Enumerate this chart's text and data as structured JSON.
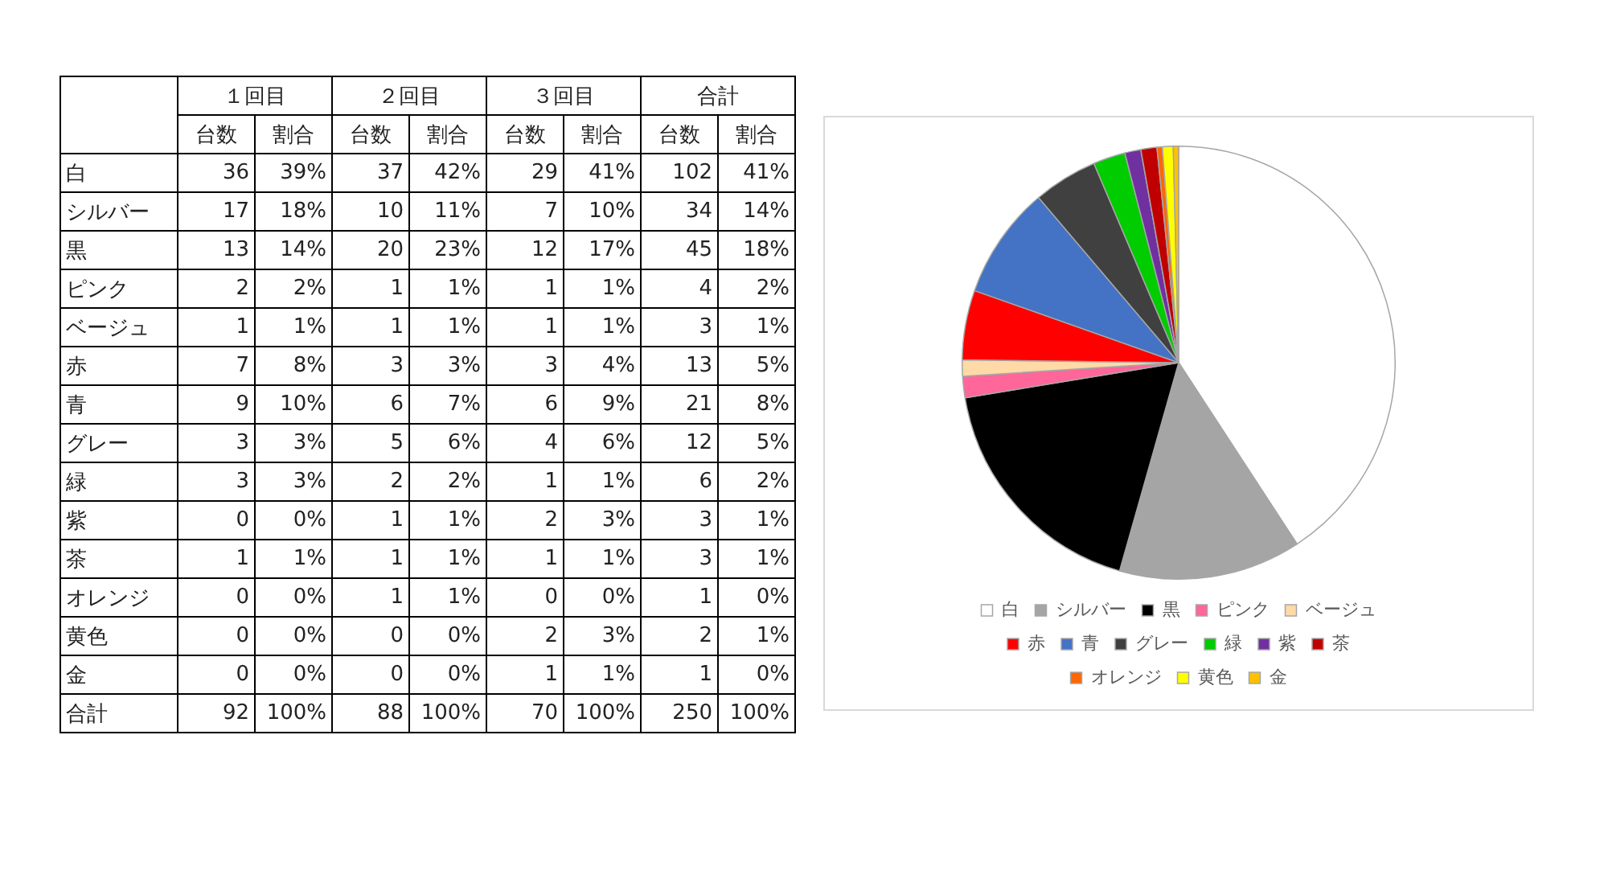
{
  "chart_data": [
    {
      "type": "other",
      "annotations": [
        "１回目",
        "２回目",
        "３回目",
        "合計"
      ],
      "categories": [
        "台数",
        "割合",
        "台数",
        "割合",
        "台数",
        "割合",
        "台数",
        "割合"
      ],
      "y_categories": [
        "白",
        "シルバー",
        "黒",
        "ピンク",
        "ベージュ",
        "赤",
        "青",
        "グレー",
        "緑",
        "紫",
        "茶",
        "オレンジ",
        "黄色",
        "金",
        "合計"
      ],
      "cell_labels": [
        [
          "36",
          "39%",
          "37",
          "42%",
          "29",
          "41%",
          "102",
          "41%"
        ],
        [
          "17",
          "18%",
          "10",
          "11%",
          "7",
          "10%",
          "34",
          "14%"
        ],
        [
          "13",
          "14%",
          "20",
          "23%",
          "12",
          "17%",
          "45",
          "18%"
        ],
        [
          "2",
          "2%",
          "1",
          "1%",
          "1",
          "1%",
          "4",
          "2%"
        ],
        [
          "1",
          "1%",
          "1",
          "1%",
          "1",
          "1%",
          "3",
          "1%"
        ],
        [
          "7",
          "8%",
          "3",
          "3%",
          "3",
          "4%",
          "13",
          "5%"
        ],
        [
          "9",
          "10%",
          "6",
          "7%",
          "6",
          "9%",
          "21",
          "8%"
        ],
        [
          "3",
          "3%",
          "5",
          "6%",
          "4",
          "6%",
          "12",
          "5%"
        ],
        [
          "3",
          "3%",
          "2",
          "2%",
          "1",
          "1%",
          "6",
          "2%"
        ],
        [
          "0",
          "0%",
          "1",
          "1%",
          "2",
          "3%",
          "3",
          "1%"
        ],
        [
          "1",
          "1%",
          "1",
          "1%",
          "1",
          "1%",
          "3",
          "1%"
        ],
        [
          "0",
          "0%",
          "1",
          "1%",
          "0",
          "0%",
          "1",
          "0%"
        ],
        [
          "0",
          "0%",
          "0",
          "0%",
          "2",
          "3%",
          "2",
          "1%"
        ],
        [
          "0",
          "0%",
          "0",
          "0%",
          "1",
          "1%",
          "1",
          "0%"
        ],
        [
          "92",
          "100%",
          "88",
          "100%",
          "70",
          "100%",
          "250",
          "100%"
        ]
      ]
    },
    {
      "type": "pie",
      "categories": [
        "白",
        "シルバー",
        "黒",
        "ピンク",
        "ベージュ",
        "赤",
        "青",
        "グレー",
        "緑",
        "紫",
        "茶",
        "オレンジ",
        "黄色",
        "金"
      ],
      "values": [
        40.8,
        13.6,
        18,
        1.6,
        1.2,
        5.2,
        8.4,
        4.8,
        2.4,
        1.2,
        1.2,
        0.4,
        0.8,
        0.4
      ],
      "colors": [
        "#ffffff",
        "#a5a5a5",
        "#000000",
        "#ff6699",
        "#ffd9a6",
        "#ff0000",
        "#4472c4",
        "#404040",
        "#00cc00",
        "#7030a0",
        "#c00000",
        "#ff6600",
        "#ffff00",
        "#ffc000"
      ],
      "legend": "bottom"
    }
  ]
}
